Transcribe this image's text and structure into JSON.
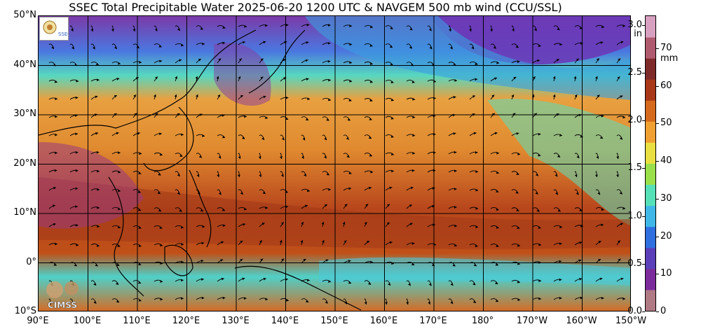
{
  "title": "SSEC Total Precipitable Water  2025-06-20 1200 UTC & NAVGEM 500 mb wind (CCU/SSL)",
  "lat_labels": [
    "50°N",
    "40°N",
    "30°N",
    "20°N",
    "10°N",
    "0°",
    "10°S"
  ],
  "lon_labels": [
    "90°E",
    "100°E",
    "110°E",
    "120°E",
    "130°E",
    "140°E",
    "150°E",
    "160°E",
    "170°E",
    "180°",
    "170°W",
    "160°W",
    "150°W"
  ],
  "colorbar": {
    "inch_labels": [
      "3.0",
      "2.5",
      "2.0",
      "1.5",
      "1.0",
      "0.5",
      "0.0"
    ],
    "inch_unit": "in",
    "mm_labels": [
      "70",
      "60",
      "50",
      "40",
      "30",
      "20",
      "10",
      "0"
    ],
    "mm_unit": "mm",
    "colors": [
      "#b07a85",
      "#7b2c9a",
      "#5a3fb8",
      "#2f6fe0",
      "#3fb8e8",
      "#56e0b8",
      "#9ae04a",
      "#e8e040",
      "#f0a030",
      "#d66a1c",
      "#a83818",
      "#7e2a2a",
      "#b05a70",
      "#d8a0c0"
    ]
  },
  "logos": {
    "bottom_left": "CIMSS",
    "top_left": "SSEC"
  }
}
